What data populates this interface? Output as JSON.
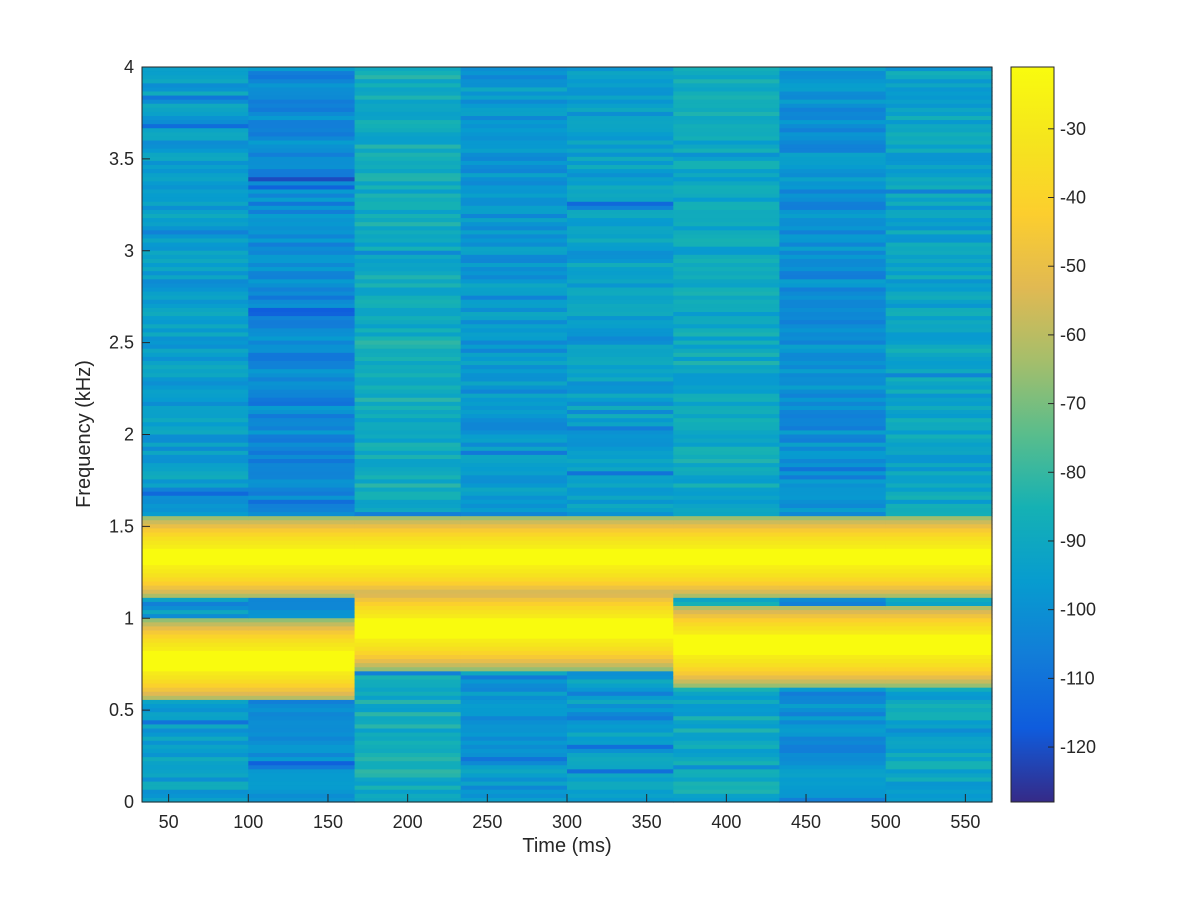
{
  "chart_data": {
    "type": "heatmap",
    "title": "",
    "xlabel": "Time (ms)",
    "ylabel": "Frequency (kHz)",
    "x_ticks": [
      "50",
      "100",
      "150",
      "200",
      "250",
      "300",
      "350",
      "400",
      "450",
      "500",
      "550"
    ],
    "y_ticks": [
      "0",
      "0.5",
      "1",
      "1.5",
      "2",
      "2.5",
      "3",
      "3.5",
      "4"
    ],
    "colorbar_ticks": [
      "-30",
      "-40",
      "-50",
      "-60",
      "-70",
      "-80",
      "-90",
      "-100",
      "-110",
      "-120"
    ],
    "colormap": "parula",
    "xlim": [
      33.3,
      566.7
    ],
    "ylim": [
      0,
      4
    ],
    "clim": [
      -128,
      -21
    ],
    "grid": false,
    "frames": [
      {
        "t_start": 33.3,
        "t_end": 100.0,
        "low_tone_khz": 0.77,
        "high_tone_khz": 1.33,
        "background_db": -95
      },
      {
        "t_start": 100.0,
        "t_end": 166.7,
        "low_tone_khz": 0.77,
        "high_tone_khz": 1.33,
        "background_db": -102
      },
      {
        "t_start": 166.7,
        "t_end": 233.3,
        "low_tone_khz": 0.94,
        "high_tone_khz": 1.33,
        "background_db": -88
      },
      {
        "t_start": 233.3,
        "t_end": 300.0,
        "low_tone_khz": 0.94,
        "high_tone_khz": 1.33,
        "background_db": -97
      },
      {
        "t_start": 300.0,
        "t_end": 366.7,
        "low_tone_khz": 0.94,
        "high_tone_khz": 1.33,
        "background_db": -94
      },
      {
        "t_start": 366.7,
        "t_end": 433.3,
        "low_tone_khz": 0.85,
        "high_tone_khz": 1.33,
        "background_db": -90
      },
      {
        "t_start": 433.3,
        "t_end": 500.0,
        "low_tone_khz": 0.85,
        "high_tone_khz": 1.33,
        "background_db": -100
      },
      {
        "t_start": 500.0,
        "t_end": 566.7,
        "low_tone_khz": 0.85,
        "high_tone_khz": 1.33,
        "background_db": -92
      }
    ],
    "peak_db": -21
  }
}
